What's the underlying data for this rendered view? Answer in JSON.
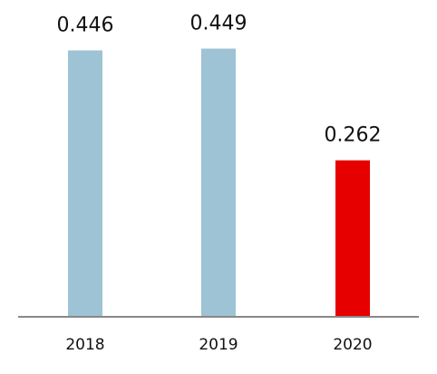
{
  "chart_data": {
    "type": "bar",
    "title": "",
    "xlabel": "",
    "ylabel": "",
    "categories": [
      "2018",
      "2019",
      "2020"
    ],
    "values": [
      0.446,
      0.449,
      0.262
    ],
    "value_labels": [
      "0.446",
      "0.449",
      "0.262"
    ],
    "ylim": [
      0,
      0.5
    ],
    "grid": false,
    "legend": "none",
    "colors": {
      "default_bar": "#9dc3d4",
      "highlight_bar": "#e60000",
      "axis": "#888888",
      "text": "#111111"
    },
    "highlight_category": "2020"
  }
}
